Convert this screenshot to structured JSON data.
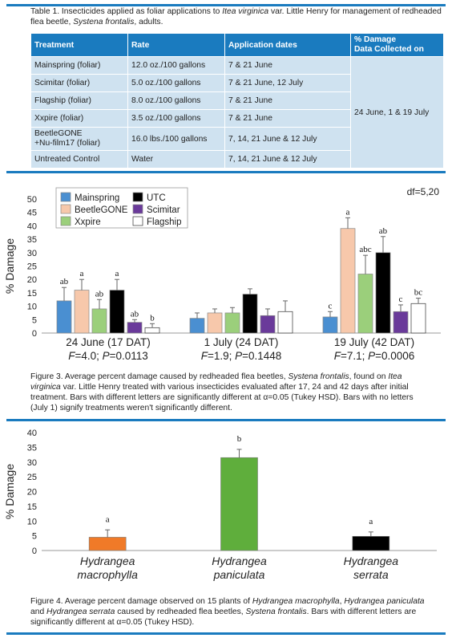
{
  "table1": {
    "caption_parts": [
      "Table 1. Insecticides applied as foliar applications to ",
      "Itea virginica",
      " var. Little Henry for management of redheaded flea beetle, ",
      "Systena frontalis",
      ", adults."
    ],
    "headers": [
      "Treatment",
      "Rate",
      "Application dates",
      "% Damage",
      "Data Collected on"
    ],
    "rows": [
      {
        "treatment": "Mainspring (foliar)",
        "rate": "12.0 oz./100 gallons",
        "dates": "7 & 21 June"
      },
      {
        "treatment": "Scimitar (foliar)",
        "rate": "5.0 oz./100 gallons",
        "dates": "7 & 21 June, 12 July"
      },
      {
        "treatment": "Flagship (foliar)",
        "rate": "8.0 oz./100 gallons",
        "dates": "7 & 21 June"
      },
      {
        "treatment": "Xxpire (foliar)",
        "rate": "3.5 oz./100 gallons",
        "dates": "7 & 21 June"
      },
      {
        "treatment_line1": "BeetleGONE",
        "treatment_line2": "+Nu-film17 (foliar)",
        "rate": "16.0 lbs./100 gallons",
        "dates": "7, 14, 21 June & 12 July"
      },
      {
        "treatment": "Untreated Control",
        "rate": "Water",
        "dates": "7, 14, 21 June & 12 July"
      }
    ],
    "collected_on": "24 June, 1 & 19 July"
  },
  "colors": {
    "rule": "#1a7bbf",
    "header_bg": "#1a7bbf",
    "cell_bg": "#cfe2f0",
    "Mainspring": "#4a8fd1",
    "BeetleGONE": "#f7c8ab",
    "Xxpire": "#9bcf7b",
    "UTC": "#000000",
    "Scimitar": "#6a3a9a",
    "Flagship": "#ffffff",
    "macrophylla": "#f07a28",
    "paniculata": "#5fae3c",
    "serrata": "#000000"
  },
  "figure3": {
    "caption_parts": [
      "Figure 3. Average percent damage caused by redheaded flea beetles, ",
      "Systena frontalis",
      ", found on ",
      "Itea virginica",
      " var. Little Henry treated with various insecticides evaluated after 17, 24 and 42 days after initial treatment. Bars with different letters are significantly different at α=0.05 (Tukey HSD). Bars with no letters (July 1) signify treatments weren't significantly different."
    ],
    "df_label": "df=5,20"
  },
  "figure4": {
    "caption_parts": [
      "Figure 4. Average percent damage observed on 15 plants of ",
      "Hydrangea macrophylla",
      ", ",
      "Hydrangea paniculata",
      " and ",
      "Hydrangea serrata",
      " caused by redheaded flea beetles, ",
      "Systena frontalis",
      ". Bars with different letters are significantly different at α=0.05 (Tukey HSD)."
    ]
  },
  "chart_data": [
    {
      "type": "bar",
      "ylabel": "% Damage",
      "ylim": [
        0,
        50
      ],
      "yticks": [
        0,
        5,
        10,
        15,
        20,
        25,
        30,
        35,
        40,
        45,
        50
      ],
      "legend": [
        "Mainspring",
        "BeetleGONE",
        "Xxpire",
        "UTC",
        "Scimitar",
        "Flagship"
      ],
      "legend_placement": "top-left",
      "groups": [
        {
          "label": "24 June (17 DAT)",
          "stat_f": "4.0",
          "stat_p": "0.0113"
        },
        {
          "label": "1 July (24 DAT)",
          "stat_f": "1.9",
          "stat_p": "0.1448"
        },
        {
          "label": "19 July (42 DAT)",
          "stat_f": "7.1",
          "stat_p": "0.0006"
        }
      ],
      "series": [
        {
          "name": "Mainspring",
          "values": [
            12,
            5.5,
            6
          ],
          "errors": [
            5,
            2,
            2
          ],
          "letters": [
            "ab",
            "",
            "c"
          ]
        },
        {
          "name": "BeetleGONE",
          "values": [
            16,
            7.5,
            39
          ],
          "errors": [
            4,
            1.5,
            4
          ],
          "letters": [
            "a",
            "",
            "a"
          ]
        },
        {
          "name": "Xxpire",
          "values": [
            9,
            7.5,
            22
          ],
          "errors": [
            3.5,
            2,
            7
          ],
          "letters": [
            "ab",
            "",
            "abc"
          ]
        },
        {
          "name": "UTC",
          "values": [
            16,
            14.5,
            30
          ],
          "errors": [
            4,
            2,
            6
          ],
          "letters": [
            "a",
            "",
            "ab"
          ]
        },
        {
          "name": "Scimitar",
          "values": [
            4,
            6.5,
            8
          ],
          "errors": [
            1,
            2.5,
            2.5
          ],
          "letters": [
            "ab",
            "",
            "c"
          ]
        },
        {
          "name": "Flagship",
          "values": [
            2,
            8,
            11
          ],
          "errors": [
            1.5,
            4,
            2
          ],
          "letters": [
            "b",
            "",
            "bc"
          ]
        }
      ]
    },
    {
      "type": "bar",
      "ylabel": "% Damage",
      "ylim": [
        0,
        40
      ],
      "yticks": [
        0,
        5,
        10,
        15,
        20,
        25,
        30,
        35,
        40
      ],
      "categories": [
        {
          "line1": "Hydrangea",
          "line2": "macrophylla"
        },
        {
          "line1": "Hydrangea",
          "line2": "paniculata"
        },
        {
          "line1": "Hydrangea",
          "line2": "serrata"
        }
      ],
      "values": [
        4.5,
        31.5,
        4.8
      ],
      "errors": [
        2.5,
        2.8,
        1.5
      ],
      "letters": [
        "a",
        "b",
        "a"
      ]
    }
  ]
}
